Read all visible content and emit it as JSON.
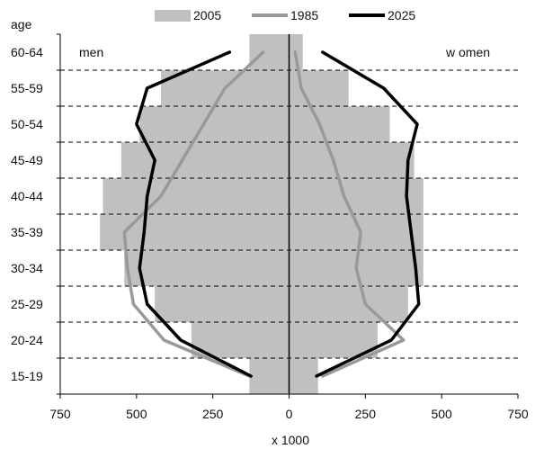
{
  "chart_data": {
    "type": "population-pyramid",
    "ylabel": "age",
    "xlabel": "x 1000",
    "left_label": "men",
    "right_label": "w omen",
    "legend_position": "top",
    "age_groups": [
      "15-19",
      "20-24",
      "25-29",
      "30-34",
      "35-39",
      "40-44",
      "45-49",
      "50-54",
      "55-59",
      "60-64"
    ],
    "xlim": [
      -750,
      750
    ],
    "x_ticks": [
      -750,
      -500,
      -250,
      0,
      250,
      500,
      750
    ],
    "x_tick_labels": [
      "750",
      "500",
      "250",
      "0",
      "250",
      "500",
      "750"
    ],
    "series": [
      {
        "name": "2005",
        "style": "bar",
        "color": "#c0c0c0",
        "men": [
          130,
          320,
          440,
          540,
          620,
          610,
          550,
          490,
          420,
          130
        ],
        "women": [
          95,
          290,
          390,
          440,
          440,
          440,
          410,
          330,
          195,
          45
        ]
      },
      {
        "name": "1985",
        "style": "line",
        "color": "#999999",
        "men": [
          130,
          410,
          510,
          530,
          540,
          420,
          350,
          280,
          210,
          85
        ],
        "women": [
          110,
          375,
          250,
          220,
          235,
          180,
          145,
          100,
          40,
          20
        ]
      },
      {
        "name": "2025",
        "style": "line",
        "color": "#000000",
        "men": [
          125,
          355,
          465,
          490,
          475,
          465,
          440,
          500,
          465,
          195
        ],
        "women": [
          90,
          335,
          425,
          415,
          400,
          385,
          390,
          420,
          310,
          110
        ]
      }
    ]
  }
}
